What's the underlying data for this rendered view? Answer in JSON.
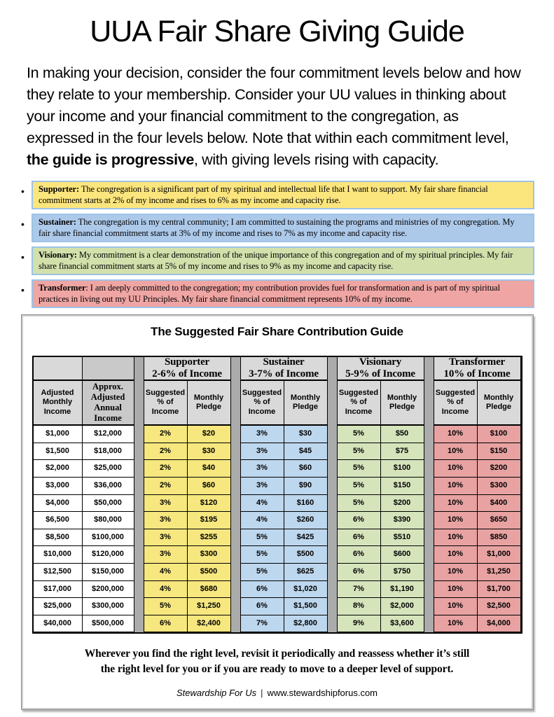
{
  "page": {
    "title": "UUA Fair Share Giving Guide",
    "bullet_glyph": "•",
    "intro": {
      "before": "In making your decision, consider the four commitment levels below and how they relate to your membership. Consider your UU values in thinking about your income and your financial commitment to the congregation, as expressed in the four levels below. Note that within each commitment level, ",
      "bold": "the guide is progressive",
      "after": ", with giving levels rising with capacity."
    }
  },
  "levels": [
    {
      "bold": "Supporter:",
      "rest": " The congregation is a significant part of my spiritual and intellectual life that I want to support. My fair share financial commitment starts at 2% of my income and rises to 6% as my income and capacity rise.",
      "bg": "#FBE57D"
    },
    {
      "bold": "Sustainer:",
      "rest": " The congregation is my central community; I am committed to sustaining the programs and ministries of my congregation. My fair share financial commitment starts at 3% of my income and rises to 7% as my income and capacity rise.",
      "bg": "#ADC9EA"
    },
    {
      "bold": "Visionary:",
      "rest": " My commitment is a clear demonstration of the unique importance of this congregation and of my spiritual principles. My fair share financial commitment starts at 5% of my income and rises to 9% as my income and capacity rise.",
      "bg": "#D2E0AC"
    },
    {
      "bold": "Transformer",
      "rest": ": I am deeply committed to the congregation; my contribution provides fuel for transformation and is part of my spiritual practices in living out my UU Principles. My fair share financial commitment represents 10% of my income.",
      "bg": "#EFA5A3"
    }
  ],
  "table": {
    "title": "The Suggested Fair Share Contribution Guide",
    "income_headers": [
      "Adjusted Monthly Income",
      "Approx. Adjusted Annual Income"
    ],
    "groups": [
      {
        "name": "Supporter",
        "range": "2-6% of Income",
        "color": "#F6E77F"
      },
      {
        "name": "Sustainer",
        "range": "3-7% of Income",
        "color": "#BDD7EE"
      },
      {
        "name": "Visionary",
        "range": "5-9% of Income",
        "color": "#D6E4BC"
      },
      {
        "name": "Transformer",
        "range": "10% of Income",
        "color": "#E8A2A2"
      }
    ],
    "sub_headers": [
      "Suggested % of Income",
      "Monthly Pledge"
    ],
    "rows": [
      [
        "$1,000",
        "$12,000",
        "2%",
        "$20",
        "3%",
        "$30",
        "5%",
        "$50",
        "10%",
        "$100"
      ],
      [
        "$1,500",
        "$18,000",
        "2%",
        "$30",
        "3%",
        "$45",
        "5%",
        "$75",
        "10%",
        "$150"
      ],
      [
        "$2,000",
        "$25,000",
        "2%",
        "$40",
        "3%",
        "$60",
        "5%",
        "$100",
        "10%",
        "$200"
      ],
      [
        "$3,000",
        "$36,000",
        "2%",
        "$60",
        "3%",
        "$90",
        "5%",
        "$150",
        "10%",
        "$300"
      ],
      [
        "$4,000",
        "$50,000",
        "3%",
        "$120",
        "4%",
        "$160",
        "5%",
        "$200",
        "10%",
        "$400"
      ],
      [
        "$6,500",
        "$80,000",
        "3%",
        "$195",
        "4%",
        "$260",
        "6%",
        "$390",
        "10%",
        "$650"
      ],
      [
        "$8,500",
        "$100,000",
        "3%",
        "$255",
        "5%",
        "$425",
        "6%",
        "$510",
        "10%",
        "$850"
      ],
      [
        "$10,000",
        "$120,000",
        "3%",
        "$300",
        "5%",
        "$500",
        "6%",
        "$600",
        "10%",
        "$1,000"
      ],
      [
        "$12,500",
        "$150,000",
        "4%",
        "$500",
        "5%",
        "$625",
        "6%",
        "$750",
        "10%",
        "$1,250"
      ],
      [
        "$17,000",
        "$200,000",
        "4%",
        "$680",
        "6%",
        "$1,020",
        "7%",
        "$1,190",
        "10%",
        "$1,700"
      ],
      [
        "$25,000",
        "$300,000",
        "5%",
        "$1,250",
        "6%",
        "$1,500",
        "8%",
        "$2,000",
        "10%",
        "$2,500"
      ],
      [
        "$40,000",
        "$500,000",
        "6%",
        "$2,400",
        "7%",
        "$2,800",
        "9%",
        "$3,600",
        "10%",
        "$4,000"
      ]
    ],
    "footer": {
      "line1": "Wherever you find the right level, revisit it periodically and reassess whether it’s still",
      "line2": "the right level for you or if you are ready to move to a deeper level of support.",
      "credit_name": "Stewardship For Us",
      "credit_separator": "|",
      "credit_site": "www.stewardshipforus.com"
    }
  },
  "colors": {
    "box_border": "#9DC3E6",
    "header_bg": "#D9D9D9",
    "header_bg_dark": "#C9C9C9",
    "spacer_bg": "#ABABAB"
  }
}
